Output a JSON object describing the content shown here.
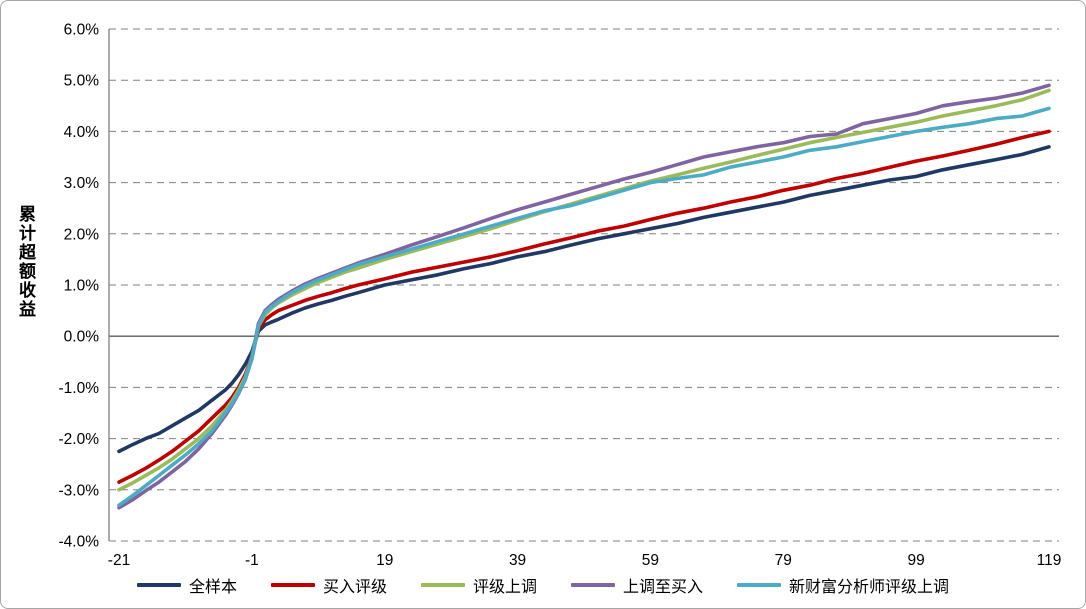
{
  "chart_data": {
    "type": "line",
    "title": "",
    "xlabel": "",
    "ylabel": "累计超额收益",
    "xlim": [
      -21,
      119
    ],
    "ylim": [
      -4.0,
      6.0
    ],
    "grid": "dashed horizontal gridlines at every 1.0%, solid line at 0.0%",
    "legend_position": "bottom",
    "y_tick_values": [
      6,
      5,
      4,
      3,
      2,
      1,
      0,
      -1,
      -2,
      -3,
      -4
    ],
    "y_tick_labels": [
      "6.0%",
      "5.0%",
      "4.0%",
      "3.0%",
      "2.0%",
      "1.0%",
      "0.0%",
      "-1.0%",
      "-2.0%",
      "-3.0%",
      "-4.0%"
    ],
    "x_tick_values": [
      -21,
      -1,
      19,
      39,
      59,
      79,
      99,
      119
    ],
    "x_tick_labels": [
      "-21",
      "-1",
      "19",
      "39",
      "59",
      "79",
      "99",
      "119"
    ],
    "x": [
      -21,
      -19,
      -17,
      -15,
      -13,
      -11,
      -9,
      -7,
      -5,
      -4,
      -3,
      -2,
      -1,
      0,
      1,
      2,
      3,
      5,
      7,
      9,
      11,
      13,
      15,
      19,
      23,
      27,
      31,
      35,
      39,
      43,
      47,
      51,
      55,
      59,
      63,
      67,
      71,
      75,
      79,
      83,
      87,
      91,
      95,
      99,
      103,
      107,
      111,
      115,
      119
    ],
    "series": [
      {
        "name": "全样本",
        "color": "#1F3864",
        "values": [
          -2.25,
          -2.12,
          -2.0,
          -1.9,
          -1.75,
          -1.6,
          -1.45,
          -1.25,
          -1.05,
          -0.92,
          -0.75,
          -0.55,
          -0.3,
          0.1,
          0.22,
          0.28,
          0.33,
          0.45,
          0.55,
          0.63,
          0.7,
          0.78,
          0.85,
          1.0,
          1.1,
          1.2,
          1.32,
          1.42,
          1.55,
          1.65,
          1.78,
          1.9,
          2.0,
          2.1,
          2.2,
          2.32,
          2.42,
          2.52,
          2.62,
          2.75,
          2.85,
          2.95,
          3.05,
          3.12,
          3.25,
          3.35,
          3.45,
          3.55,
          3.7
        ]
      },
      {
        "name": "买入评级",
        "color": "#C00000",
        "values": [
          -2.85,
          -2.72,
          -2.58,
          -2.42,
          -2.25,
          -2.05,
          -1.85,
          -1.6,
          -1.35,
          -1.2,
          -1.0,
          -0.75,
          -0.4,
          0.15,
          0.32,
          0.42,
          0.5,
          0.6,
          0.7,
          0.78,
          0.85,
          0.93,
          1.0,
          1.12,
          1.25,
          1.35,
          1.45,
          1.55,
          1.67,
          1.8,
          1.92,
          2.05,
          2.15,
          2.28,
          2.4,
          2.5,
          2.62,
          2.72,
          2.85,
          2.95,
          3.08,
          3.18,
          3.3,
          3.42,
          3.52,
          3.63,
          3.75,
          3.88,
          4.0
        ]
      },
      {
        "name": "评级上调",
        "color": "#9BBB59",
        "values": [
          -3.0,
          -2.87,
          -2.72,
          -2.57,
          -2.4,
          -2.2,
          -2.0,
          -1.75,
          -1.45,
          -1.27,
          -1.05,
          -0.8,
          -0.4,
          0.2,
          0.42,
          0.55,
          0.65,
          0.8,
          0.93,
          1.05,
          1.15,
          1.25,
          1.33,
          1.5,
          1.65,
          1.8,
          1.95,
          2.1,
          2.27,
          2.43,
          2.58,
          2.73,
          2.88,
          3.03,
          3.15,
          3.28,
          3.4,
          3.53,
          3.65,
          3.78,
          3.88,
          3.98,
          4.08,
          4.18,
          4.3,
          4.4,
          4.5,
          4.62,
          4.8
        ]
      },
      {
        "name": "上调至买入",
        "color": "#8064A2",
        "values": [
          -3.35,
          -3.2,
          -3.02,
          -2.85,
          -2.65,
          -2.45,
          -2.2,
          -1.9,
          -1.55,
          -1.35,
          -1.12,
          -0.85,
          -0.42,
          0.25,
          0.5,
          0.62,
          0.72,
          0.88,
          1.02,
          1.13,
          1.23,
          1.33,
          1.43,
          1.6,
          1.78,
          1.95,
          2.12,
          2.3,
          2.47,
          2.62,
          2.77,
          2.92,
          3.07,
          3.2,
          3.35,
          3.5,
          3.6,
          3.7,
          3.78,
          3.9,
          3.95,
          4.15,
          4.25,
          4.35,
          4.5,
          4.58,
          4.65,
          4.75,
          4.9
        ]
      },
      {
        "name": "新财富分析师评级上调",
        "color": "#4BACC6",
        "values": [
          -3.3,
          -3.12,
          -2.92,
          -2.72,
          -2.52,
          -2.32,
          -2.1,
          -1.85,
          -1.5,
          -1.32,
          -1.1,
          -0.85,
          -0.45,
          0.2,
          0.47,
          0.58,
          0.68,
          0.85,
          0.98,
          1.1,
          1.2,
          1.3,
          1.4,
          1.55,
          1.7,
          1.85,
          2.0,
          2.15,
          2.3,
          2.45,
          2.55,
          2.7,
          2.85,
          3.0,
          3.08,
          3.15,
          3.3,
          3.4,
          3.5,
          3.63,
          3.7,
          3.8,
          3.9,
          4.0,
          4.08,
          4.15,
          4.25,
          4.3,
          4.45
        ]
      }
    ],
    "style": {
      "gridline_color": "#808080",
      "zero_line_color": "#595959",
      "axis_line_color": "#808080",
      "background": "#ffffff"
    }
  }
}
